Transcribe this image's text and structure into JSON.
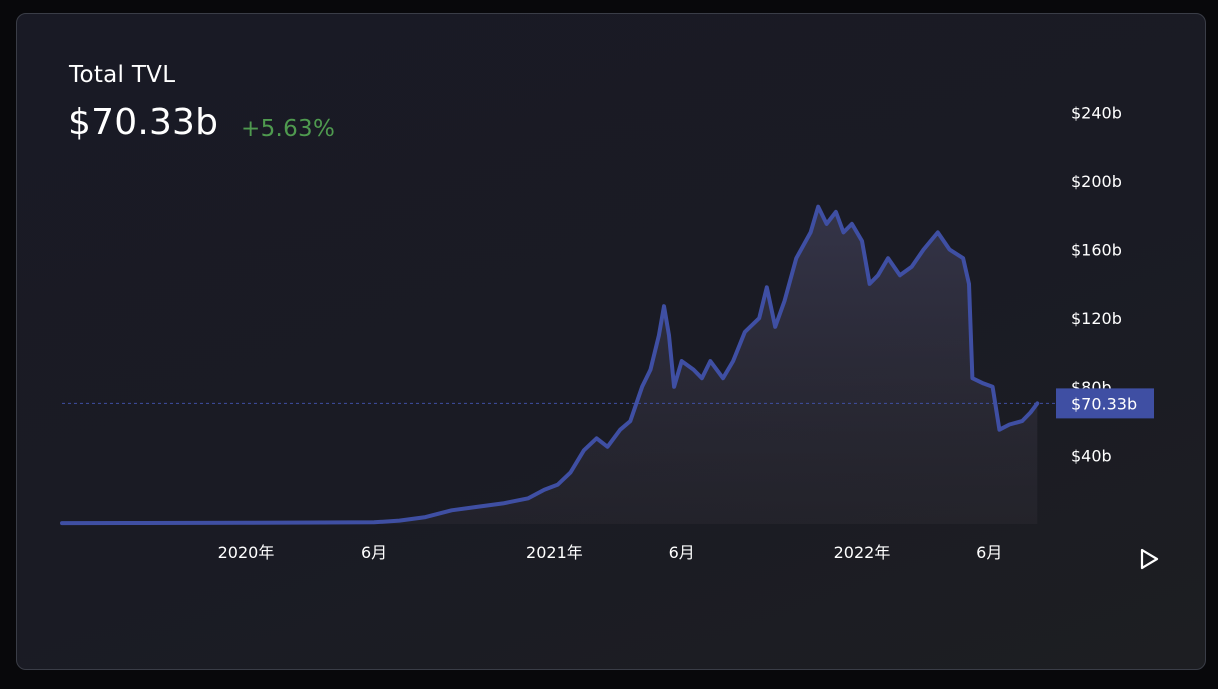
{
  "header": {
    "title": "Total TVL",
    "value": "$70.33b",
    "change": "+5.63%"
  },
  "colors": {
    "line": "#3f4fa3",
    "positive": "#4f9a4f",
    "price_tag": "#3f4fa3",
    "background": "#1a1b24"
  },
  "controls": {
    "play_icon": "play-icon"
  },
  "chart_data": {
    "type": "area",
    "title": "Total TVL",
    "x_tick_labels": [
      "2020年",
      "6月",
      "2021年",
      "6月",
      "2022年",
      "6月"
    ],
    "x_tick_dates": [
      "2020-01-01",
      "2020-06-01",
      "2021-01-01",
      "2021-06-01",
      "2022-01-01",
      "2022-06-01"
    ],
    "y_tick_labels": [
      "$40b",
      "$80b",
      "$120b",
      "$160b",
      "$200b",
      "$240b"
    ],
    "y_tick_values": [
      40,
      80,
      120,
      160,
      200,
      240
    ],
    "y_unit": "billion USD",
    "current_value": 70.33,
    "current_label": "$70.33b",
    "series": [
      {
        "values": [
          [
            "2019-05-01",
            0.5
          ],
          [
            "2019-09-01",
            0.6
          ],
          [
            "2020-01-01",
            0.7
          ],
          [
            "2020-04-01",
            0.9
          ],
          [
            "2020-06-01",
            1.0
          ],
          [
            "2020-07-01",
            2.0
          ],
          [
            "2020-08-01",
            4.0
          ],
          [
            "2020-09-01",
            8.0
          ],
          [
            "2020-10-01",
            10.0
          ],
          [
            "2020-11-01",
            12.0
          ],
          [
            "2020-12-01",
            15.0
          ],
          [
            "2020-12-20",
            20.0
          ],
          [
            "2021-01-05",
            23.0
          ],
          [
            "2021-01-20",
            30.0
          ],
          [
            "2021-02-05",
            43.0
          ],
          [
            "2021-02-20",
            50.0
          ],
          [
            "2021-03-05",
            45.0
          ],
          [
            "2021-03-20",
            55.0
          ],
          [
            "2021-04-01",
            60.0
          ],
          [
            "2021-04-15",
            80.0
          ],
          [
            "2021-04-25",
            90.0
          ],
          [
            "2021-05-05",
            110.0
          ],
          [
            "2021-05-11",
            127.0
          ],
          [
            "2021-05-17",
            110.0
          ],
          [
            "2021-05-23",
            80.0
          ],
          [
            "2021-06-01",
            95.0
          ],
          [
            "2021-06-15",
            90.0
          ],
          [
            "2021-06-25",
            85.0
          ],
          [
            "2021-07-05",
            95.0
          ],
          [
            "2021-07-20",
            85.0
          ],
          [
            "2021-08-01",
            95.0
          ],
          [
            "2021-08-15",
            112.0
          ],
          [
            "2021-09-01",
            120.0
          ],
          [
            "2021-09-10",
            138.0
          ],
          [
            "2021-09-20",
            115.0
          ],
          [
            "2021-10-01",
            130.0
          ],
          [
            "2021-10-15",
            155.0
          ],
          [
            "2021-11-01",
            170.0
          ],
          [
            "2021-11-10",
            185.0
          ],
          [
            "2021-11-20",
            175.0
          ],
          [
            "2021-12-01",
            182.0
          ],
          [
            "2021-12-10",
            170.0
          ],
          [
            "2021-12-20",
            175.0
          ],
          [
            "2022-01-01",
            165.0
          ],
          [
            "2022-01-10",
            140.0
          ],
          [
            "2022-01-20",
            145.0
          ],
          [
            "2022-02-01",
            155.0
          ],
          [
            "2022-02-15",
            145.0
          ],
          [
            "2022-03-01",
            150.0
          ],
          [
            "2022-03-15",
            160.0
          ],
          [
            "2022-04-01",
            170.0
          ],
          [
            "2022-04-15",
            160.0
          ],
          [
            "2022-05-01",
            155.0
          ],
          [
            "2022-05-08",
            140.0
          ],
          [
            "2022-05-12",
            85.0
          ],
          [
            "2022-05-25",
            82.0
          ],
          [
            "2022-06-05",
            80.0
          ],
          [
            "2022-06-13",
            55.0
          ],
          [
            "2022-06-25",
            58.0
          ],
          [
            "2022-07-10",
            60.0
          ],
          [
            "2022-07-20",
            65.0
          ],
          [
            "2022-07-28",
            70.33
          ]
        ]
      }
    ]
  }
}
